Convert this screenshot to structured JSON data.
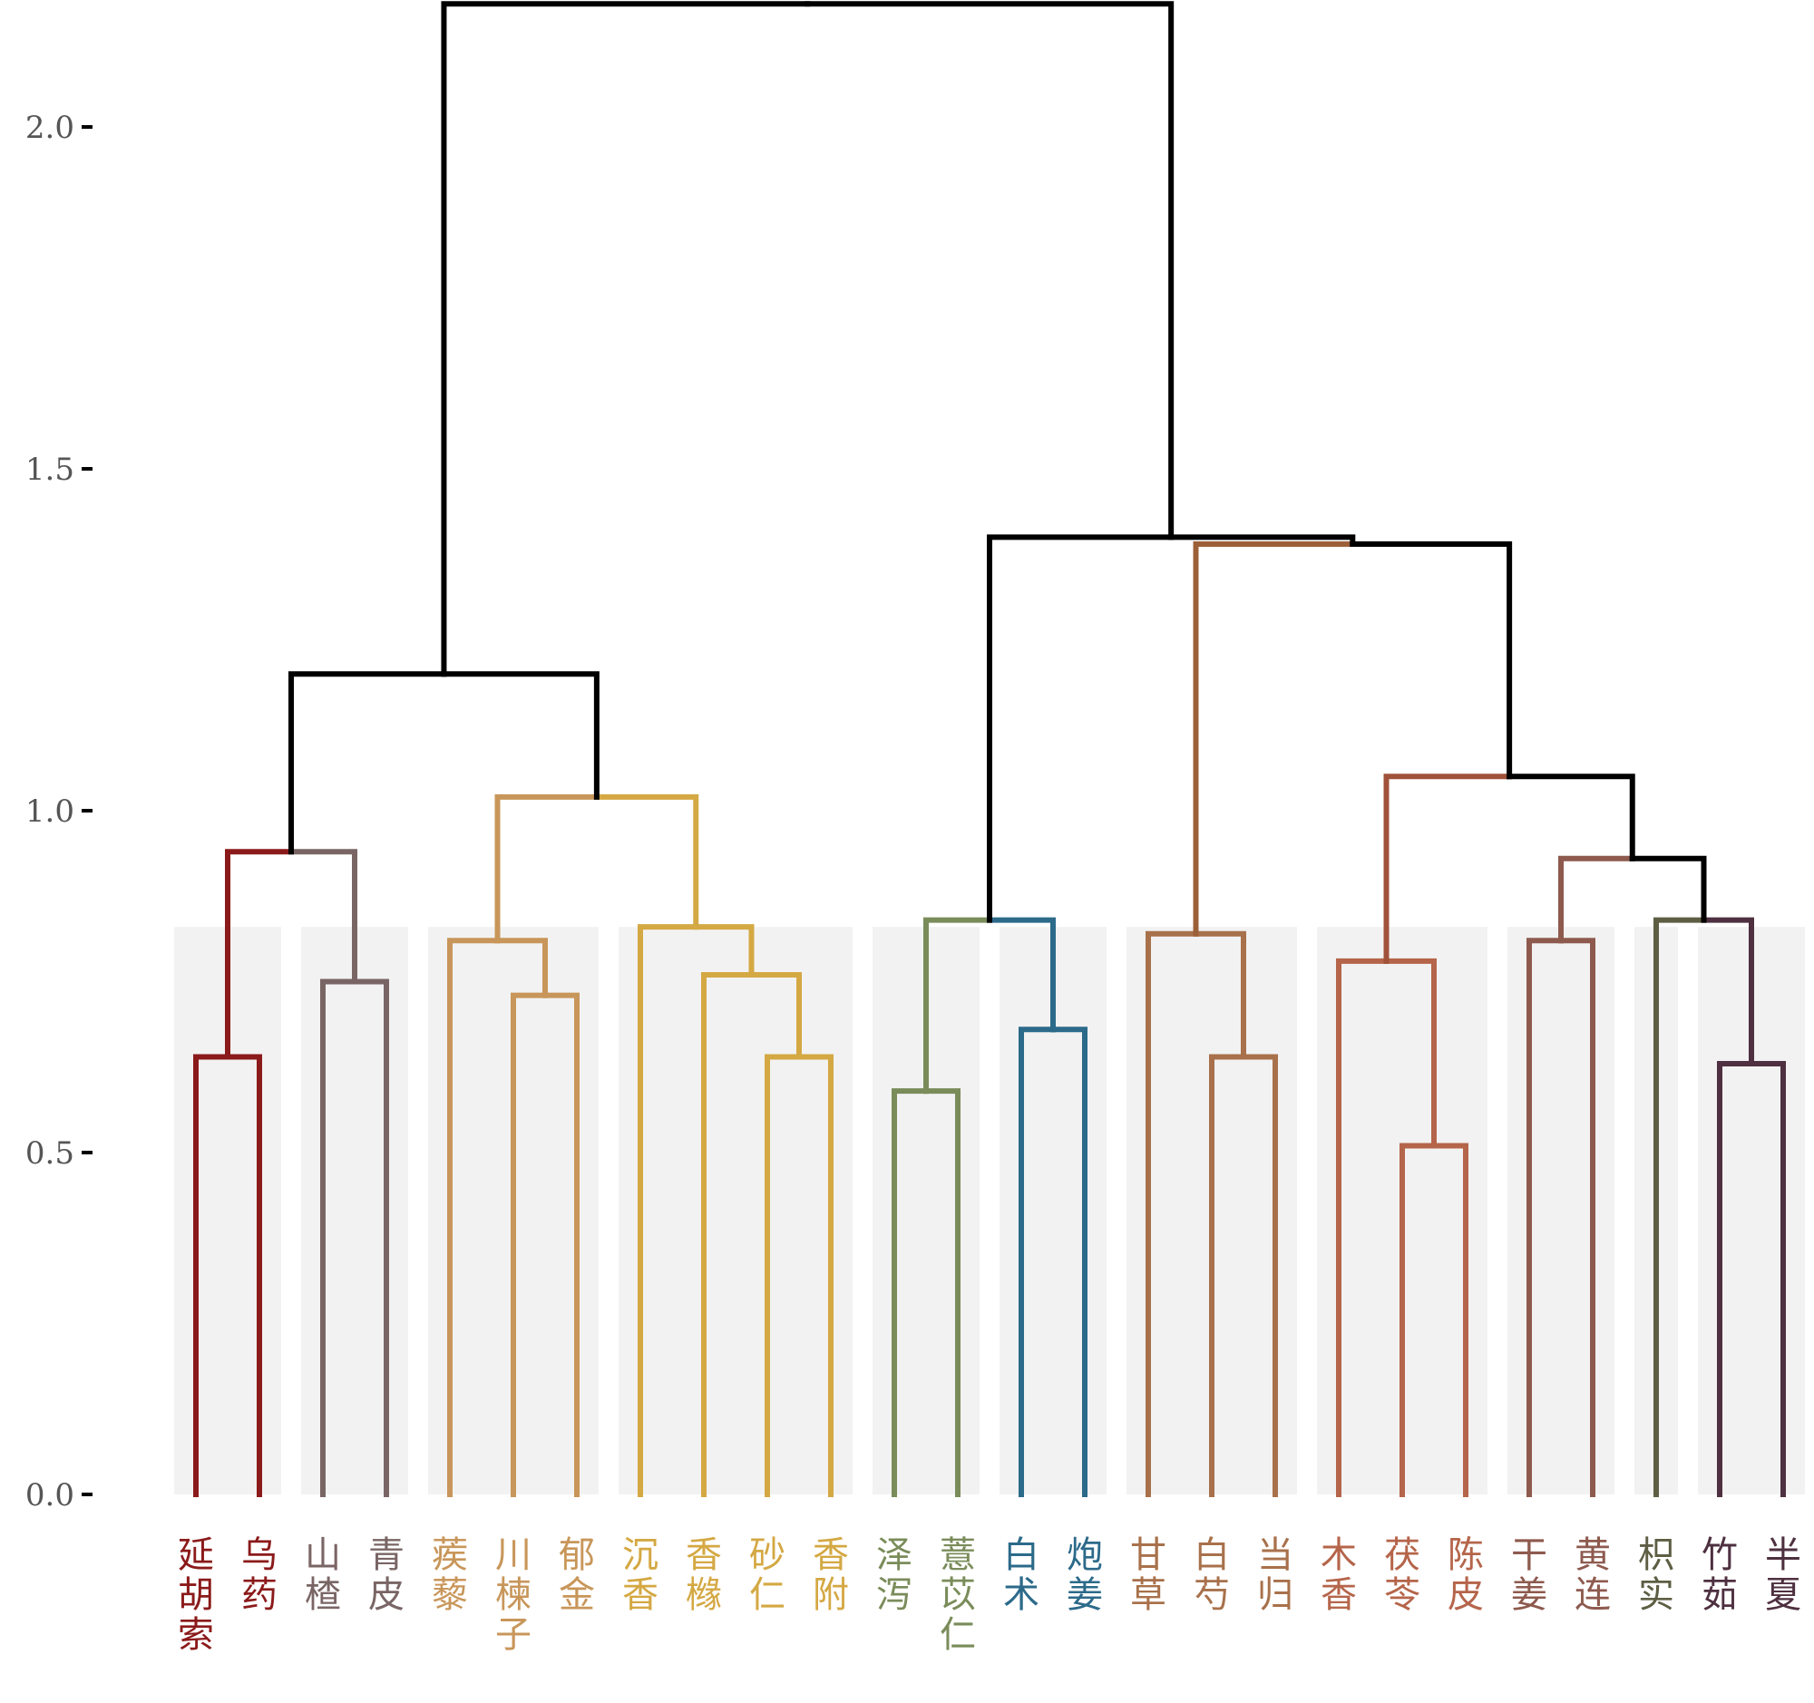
{
  "chart_data": {
    "type": "dendrogram",
    "title": "",
    "xlabel": "",
    "ylabel": "",
    "ylim": [
      0,
      2.2
    ],
    "yticks": [
      {
        "value": 0.0,
        "label": "0.0"
      },
      {
        "value": 0.5,
        "label": "0.5"
      },
      {
        "value": 1.0,
        "label": "1.0"
      },
      {
        "value": 1.5,
        "label": "1.5"
      },
      {
        "value": 2.0,
        "label": "2.0"
      }
    ],
    "leaves": [
      {
        "label": "延胡索",
        "color": "#8B1A1A"
      },
      {
        "label": "乌药",
        "color": "#8B1A1A"
      },
      {
        "label": "山楂",
        "color": "#7A6565"
      },
      {
        "label": "青皮",
        "color": "#7A6565"
      },
      {
        "label": "蒺藜",
        "color": "#C8965A"
      },
      {
        "label": "川楝子",
        "color": "#C8965A"
      },
      {
        "label": "郁金",
        "color": "#C8965A"
      },
      {
        "label": "沉香",
        "color": "#D4A843"
      },
      {
        "label": "香橼",
        "color": "#D4A843"
      },
      {
        "label": "砂仁",
        "color": "#D4A843"
      },
      {
        "label": "香附",
        "color": "#D4A843"
      },
      {
        "label": "泽泻",
        "color": "#7A8C5A"
      },
      {
        "label": "薏苡仁",
        "color": "#7A8C5A"
      },
      {
        "label": "白术",
        "color": "#2C6A8A"
      },
      {
        "label": "炮姜",
        "color": "#2C6A8A"
      },
      {
        "label": "甘草",
        "color": "#A8714B"
      },
      {
        "label": "白芍",
        "color": "#A8714B"
      },
      {
        "label": "当归",
        "color": "#A8714B"
      },
      {
        "label": "木香",
        "color": "#B5654A"
      },
      {
        "label": "茯苓",
        "color": "#B5654A"
      },
      {
        "label": "陈皮",
        "color": "#B5654A"
      },
      {
        "label": "干姜",
        "color": "#8E5A4E"
      },
      {
        "label": "黄连",
        "color": "#8E5A4E"
      },
      {
        "label": "枳实",
        "color": "#5E5E44"
      },
      {
        "label": "竹茹",
        "color": "#4E3040"
      },
      {
        "label": "半夏",
        "color": "#4E3040"
      }
    ],
    "clusters": [
      {
        "name": "cluster-1",
        "leaves": [
          0,
          1
        ],
        "color": "#8B1A1A"
      },
      {
        "name": "cluster-2",
        "leaves": [
          2,
          3
        ],
        "color": "#7A6565"
      },
      {
        "name": "cluster-3",
        "leaves": [
          4,
          5,
          6
        ],
        "color": "#C8965A"
      },
      {
        "name": "cluster-4",
        "leaves": [
          7,
          8,
          9,
          10
        ],
        "color": "#D4A843"
      },
      {
        "name": "cluster-5",
        "leaves": [
          11,
          12
        ],
        "color": "#7A8C5A"
      },
      {
        "name": "cluster-6",
        "leaves": [
          13,
          14
        ],
        "color": "#2C6A8A"
      },
      {
        "name": "cluster-7",
        "leaves": [
          15,
          16,
          17
        ],
        "color": "#A8714B"
      },
      {
        "name": "cluster-8",
        "leaves": [
          18,
          19,
          20
        ],
        "color": "#B5654A"
      },
      {
        "name": "cluster-9",
        "leaves": [
          21,
          22
        ],
        "color": "#8E5A4E"
      },
      {
        "name": "cluster-10",
        "leaves": [
          23
        ],
        "color": "#5E5E44"
      },
      {
        "name": "cluster-11",
        "leaves": [
          24,
          25
        ],
        "color": "#4E3040"
      }
    ],
    "cluster_cut_height": 0.83,
    "merges": [
      {
        "id": "m1",
        "left": "L0",
        "right": "L1",
        "height": 0.64,
        "color": "#8B1A1A"
      },
      {
        "id": "m2",
        "left": "L2",
        "right": "L3",
        "height": 0.75,
        "color": "#7A6565"
      },
      {
        "id": "m3",
        "left": "m1",
        "right": "m2",
        "height": 0.94,
        "color": [
          "#8B1A1A",
          "#7A6565"
        ]
      },
      {
        "id": "m4",
        "left": "L5",
        "right": "L6",
        "height": 0.73,
        "color": "#C8965A"
      },
      {
        "id": "m5",
        "left": "L4",
        "right": "m4",
        "height": 0.81,
        "color": "#C8965A"
      },
      {
        "id": "m6",
        "left": "L9",
        "right": "L10",
        "height": 0.64,
        "color": "#D4A843"
      },
      {
        "id": "m7",
        "left": "L8",
        "right": "m6",
        "height": 0.76,
        "color": "#D4A843"
      },
      {
        "id": "m8",
        "left": "L7",
        "right": "m7",
        "height": 0.83,
        "color": "#D4A843"
      },
      {
        "id": "m9",
        "left": "m5",
        "right": "m8",
        "height": 1.02,
        "color": [
          "#C8965A",
          "#D4A843"
        ]
      },
      {
        "id": "m10",
        "left": "m3",
        "right": "m9",
        "height": 1.2,
        "color": "#000000"
      },
      {
        "id": "m11",
        "left": "L11",
        "right": "L12",
        "height": 0.59,
        "color": "#7A8C5A"
      },
      {
        "id": "m12",
        "left": "L13",
        "right": "L14",
        "height": 0.68,
        "color": "#2C6A8A"
      },
      {
        "id": "m13",
        "left": "m11",
        "right": "m12",
        "height": 0.84,
        "color": [
          "#7A8C5A",
          "#2C6A8A"
        ]
      },
      {
        "id": "m14",
        "left": "L16",
        "right": "L17",
        "height": 0.64,
        "color": "#A8714B"
      },
      {
        "id": "m15",
        "left": "L15",
        "right": "m14",
        "height": 0.82,
        "color": "#A8714B"
      },
      {
        "id": "m16",
        "left": "L19",
        "right": "L20",
        "height": 0.51,
        "color": "#B5654A"
      },
      {
        "id": "m17",
        "left": "L18",
        "right": "m16",
        "height": 0.78,
        "color": "#B5654A"
      },
      {
        "id": "m18",
        "left": "L21",
        "right": "L22",
        "height": 0.81,
        "color": "#8E5A4E"
      },
      {
        "id": "m19",
        "left": "L24",
        "right": "L25",
        "height": 0.63,
        "color": "#4E3040"
      },
      {
        "id": "m20",
        "left": "L23",
        "right": "m19",
        "height": 0.84,
        "color": [
          "#5E5E44",
          "#4E3040"
        ]
      },
      {
        "id": "m21",
        "left": "m18",
        "right": "m20",
        "height": 0.93,
        "color": [
          "#8E5A4E",
          "#000000"
        ]
      },
      {
        "id": "m22",
        "left": "m17",
        "right": "m21",
        "height": 1.05,
        "color": [
          "#A0523A",
          "#000000"
        ]
      },
      {
        "id": "m23",
        "left": "m15",
        "right": "m22",
        "height": 1.39,
        "color": [
          "#9C6038",
          "#000000"
        ]
      },
      {
        "id": "m24",
        "left": "m13",
        "right": "m23",
        "height": 1.4,
        "color": "#000000"
      },
      {
        "id": "m25",
        "left": "m10",
        "right": "m24",
        "height": 2.18,
        "color": "#000000"
      }
    ]
  }
}
